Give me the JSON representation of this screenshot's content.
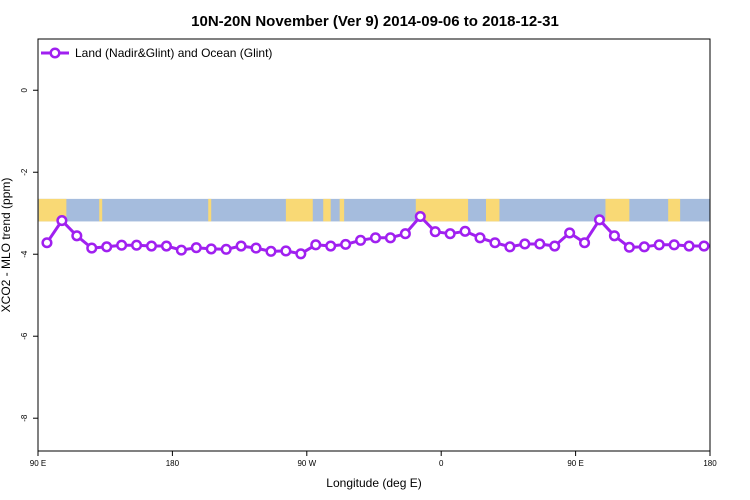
{
  "chart_data": {
    "type": "line",
    "title": "10N-20N November (Ver 9)   2014-09-06 to 2018-12-31",
    "xlabel": "Longitude (deg E)",
    "ylabel": "XCO2 - MLO trend (ppm)",
    "x_ticks": [
      {
        "value": 90,
        "label": "90 E"
      },
      {
        "value": 180,
        "label": "180"
      },
      {
        "value": 270,
        "label": "90 W"
      },
      {
        "value": 360,
        "label": "0"
      },
      {
        "value": 450,
        "label": "90 E"
      },
      {
        "value": 540,
        "label": "180"
      }
    ],
    "y_ticks": [
      {
        "value": 0,
        "label": "0"
      },
      {
        "value": -2,
        "label": "-2"
      },
      {
        "value": -4,
        "label": "-4"
      },
      {
        "value": -6,
        "label": "-6"
      },
      {
        "value": -8,
        "label": "-8"
      }
    ],
    "xlim": [
      90,
      540
    ],
    "ylim": [
      -8.8,
      1.25
    ],
    "grid": false,
    "legend_position": "top-left",
    "land_colour": "#f9d975",
    "ocean_colour": "#a5bcdd",
    "land_intervals": [
      [
        90.5,
        109
      ],
      [
        131,
        133
      ],
      [
        204,
        206
      ],
      [
        256,
        274
      ],
      [
        281,
        286
      ],
      [
        292,
        295
      ],
      [
        343,
        378
      ],
      [
        390,
        399
      ],
      [
        470,
        486
      ],
      [
        512,
        520
      ]
    ],
    "map_band_ylim": [
      -2.65,
      -3.2
    ],
    "series": [
      {
        "name": "Land (Nadir&Glint) and Ocean (Glint)",
        "colour": "#a020f0",
        "x": [
          96,
          106,
          116,
          126,
          136,
          146,
          156,
          166,
          176,
          186,
          196,
          206,
          216,
          226,
          236,
          246,
          256,
          266,
          276,
          286,
          296,
          306,
          316,
          326,
          336,
          346,
          356,
          366,
          376,
          386,
          396,
          406,
          416,
          426,
          436,
          446,
          456,
          466,
          476,
          486,
          496,
          506,
          516,
          526,
          536
        ],
        "y": [
          -3.72,
          -3.18,
          -3.55,
          -3.85,
          -3.82,
          -3.78,
          -3.78,
          -3.8,
          -3.8,
          -3.9,
          -3.84,
          -3.87,
          -3.88,
          -3.8,
          -3.85,
          -3.93,
          -3.92,
          -3.99,
          -3.77,
          -3.8,
          -3.76,
          -3.66,
          -3.6,
          -3.6,
          -3.5,
          -3.08,
          -3.45,
          -3.5,
          -3.44,
          -3.6,
          -3.72,
          -3.82,
          -3.75,
          -3.75,
          -3.8,
          -3.48,
          -3.72,
          -3.16,
          -3.55,
          -3.83,
          -3.82,
          -3.77,
          -3.77,
          -3.8,
          -3.8
        ]
      }
    ]
  }
}
